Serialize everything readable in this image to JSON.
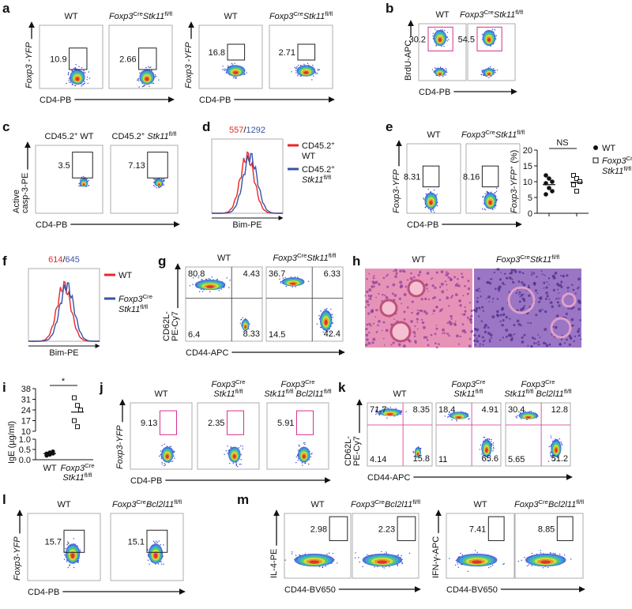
{
  "panels": [
    {
      "label": "a",
      "groups": [
        {
          "ylabel": [
            [
              "Foxp3 -YFP"
            ]
          ],
          "xlabel": "CD4-PB",
          "plots": [
            {
              "title": [
                [
                  "WT"
                ]
              ],
              "values": [
                "10.9"
              ]
            },
            {
              "title": [
                [
                  "Foxp3",
                  "Cre",
                  "Stk11",
                  "fl/fl"
                ]
              ],
              "values": [
                "2.66"
              ]
            }
          ]
        },
        {
          "ylabel": [
            [
              "Foxp3 -YFP"
            ]
          ],
          "xlabel": "CD4-PB",
          "plots": [
            {
              "title": [
                [
                  "WT"
                ]
              ],
              "values": [
                "16.8"
              ]
            },
            {
              "title": [
                [
                  "Foxp3",
                  "Cre",
                  "Stk11",
                  "fl/fl"
                ]
              ],
              "values": [
                "2.71"
              ]
            }
          ]
        }
      ]
    },
    {
      "label": "b",
      "groups": [
        {
          "ylabel": [
            [
              "BrdU-APC"
            ]
          ],
          "xlabel": "CD4-PB",
          "plots": [
            {
              "title": [
                [
                  "WT"
                ]
              ],
              "values": [
                "30.2"
              ]
            },
            {
              "title": [
                [
                  "Foxp3",
                  "Cre",
                  "Stk11",
                  "fl/fl"
                ]
              ],
              "values": [
                "54.5"
              ]
            }
          ]
        }
      ]
    },
    {
      "label": "c",
      "groups": [
        {
          "ylabel": [
            [
              "Active"
            ],
            [
              "casp-3-PE"
            ]
          ],
          "xlabel": "CD4-PB",
          "plots": [
            {
              "title": [
                [
                  "CD45.2",
                  "+",
                  " WT"
                ]
              ],
              "values": [
                "3.5"
              ]
            },
            {
              "title": [
                [
                  "CD45.2",
                  "+",
                  " Stk11",
                  "fl/fl"
                ]
              ],
              "values": [
                "7.13"
              ]
            }
          ]
        }
      ]
    },
    {
      "label": "d",
      "histogram": {
        "header": [
          "557",
          "/",
          "1292"
        ],
        "xlabel": "Bim-PE",
        "series": [
          {
            "name": [
              [
                "CD45.2",
                "+"
              ],
              [
                "WT"
              ]
            ],
            "color": "#e8262a"
          },
          {
            "name": [
              [
                "CD45.2",
                "+"
              ],
              [
                "Stk11",
                "fl/fl"
              ]
            ],
            "color": "#3953a4"
          }
        ]
      }
    },
    {
      "label": "e",
      "groups": [
        {
          "ylabel": [
            [
              "Foxp3-YFP"
            ]
          ],
          "xlabel": "CD4-PB",
          "plots": [
            {
              "title": [
                [
                  "WT"
                ]
              ],
              "values": [
                "8.31"
              ]
            },
            {
              "title": [
                [
                  "Foxp3",
                  "Cre",
                  "Stk11",
                  "fl/fl"
                ]
              ],
              "values": [
                "8.16"
              ]
            }
          ]
        }
      ],
      "chart": {
        "ylabel": [
          [
            "Foxp3-YFP",
            "+",
            " (%)"
          ]
        ],
        "ylim": [
          0,
          20
        ],
        "yticks": [
          0,
          5,
          10,
          15,
          20
        ],
        "significance": "NS",
        "series": [
          {
            "name": [
              [
                "WT"
              ]
            ],
            "values": [
              12,
              11,
              10,
              9.5,
              8,
              7,
              6
            ]
          },
          {
            "name": [
              [
                "Foxp3",
                "Cre"
              ],
              [
                "Stk11",
                "fl/fl"
              ]
            ],
            "values": [
              12,
              11,
              10,
              9,
              7
            ]
          }
        ]
      }
    },
    {
      "label": "f",
      "histogram": {
        "header": [
          "614",
          "/",
          "645"
        ],
        "xlabel": "Bim-PE",
        "series": [
          {
            "name": [
              [
                "WT"
              ]
            ],
            "color": "#e8262a"
          },
          {
            "name": [
              [
                "Foxp3",
                "Cre"
              ],
              [
                "Stk11",
                "fl/fl"
              ]
            ],
            "color": "#3953a4"
          }
        ]
      }
    },
    {
      "label": "g",
      "groups": [
        {
          "ylabel": [
            [
              "CD62L-"
            ],
            [
              "PE-Cy7"
            ]
          ],
          "xlabel": "CD44-APC",
          "plots": [
            {
              "title": [
                [
                  "WT"
                ]
              ],
              "values": [
                "80.8",
                "4.43",
                "6.4",
                "8.33"
              ]
            },
            {
              "title": [
                [
                  "Foxp3",
                  "Cre",
                  "Stk11",
                  "fl/fl"
                ]
              ],
              "values": [
                "36.7",
                "6.33",
                "14.5",
                "42.4"
              ]
            }
          ]
        }
      ]
    },
    {
      "label": "h",
      "images": [
        {
          "title": [
            [
              "WT"
            ]
          ]
        },
        {
          "title": [
            [
              "Foxp3",
              "Cre",
              "Stk11",
              "fl/fl"
            ]
          ]
        }
      ]
    },
    {
      "label": "i",
      "chart": {
        "ylabel": "IgE (µg/ml)",
        "ylim": [
          10,
          38
        ],
        "yticks": [
          10,
          17,
          24,
          31,
          38
        ],
        "ylim_lower": [
          0,
          1
        ],
        "yticks_lower": [
          {
            "value": 0,
            "label": "0.0"
          },
          {
            "value": 0.5,
            "label": "0.5"
          },
          {
            "value": 1,
            "label": "1.0"
          }
        ],
        "significance": "*",
        "series": [
          {
            "name": [
              [
                "WT"
              ]
            ],
            "values": [
              0.2,
              0.25,
              0.3,
              0.28,
              0.35,
              0.4,
              0.3
            ]
          },
          {
            "name": [
              [
                "Foxp3",
                "Cre"
              ],
              [
                "Stk11",
                "fl/fl"
              ]
            ],
            "values": [
              32,
              27,
              24,
              17,
              13
            ]
          }
        ]
      }
    },
    {
      "label": "j",
      "groups": [
        {
          "ylabel": [
            [
              "Foxp3-YFP"
            ]
          ],
          "xlabel": "CD4-PB",
          "plots": [
            {
              "title": [
                [
                  "WT"
                ]
              ],
              "values": [
                "9.13"
              ]
            },
            {
              "title": [
                [
                  "Foxp3",
                  "Cre"
                ],
                [
                  "Stk11",
                  "fl/fl"
                ]
              ],
              "values": [
                "2.35"
              ]
            },
            {
              "title": [
                [
                  "Foxp3",
                  "Cre"
                ],
                [
                  "Stk11",
                  "fl/fl",
                  " Bcl2l11",
                  "fl/fl"
                ]
              ],
              "values": [
                "5.91"
              ]
            }
          ]
        }
      ]
    },
    {
      "label": "k",
      "groups": [
        {
          "ylabel": [
            [
              "CD62L-"
            ],
            [
              "PE-Cy7"
            ]
          ],
          "xlabel": "CD44-APC",
          "plots": [
            {
              "title": [
                [
                  "WT"
                ]
              ],
              "values": [
                "71.7",
                "8.35",
                "4.14",
                "15.8"
              ]
            },
            {
              "title": [
                [
                  "Foxp3",
                  "Cre"
                ],
                [
                  "Stk11",
                  "fl/fl"
                ]
              ],
              "values": [
                "18.4",
                "4.91",
                "11",
                "65.6"
              ]
            },
            {
              "title": [
                [
                  "Foxp3",
                  "Cre"
                ],
                [
                  "Stk11",
                  "fl/fl",
                  " Bcl2l11",
                  "fl/fl"
                ]
              ],
              "values": [
                "30.4",
                "12.8",
                "5.65",
                "51.2"
              ]
            }
          ]
        }
      ]
    },
    {
      "label": "l",
      "groups": [
        {
          "ylabel": [
            [
              "Foxp3-YFP"
            ]
          ],
          "xlabel": "CD4-PB",
          "plots": [
            {
              "title": [
                [
                  "WT"
                ]
              ],
              "values": [
                "15.7"
              ]
            },
            {
              "title": [
                [
                  "Foxp3",
                  "Cre",
                  "Bcl2l11",
                  "fl/fl"
                ]
              ],
              "values": [
                "15.1"
              ]
            }
          ]
        }
      ]
    },
    {
      "label": "m",
      "groups": [
        {
          "ylabel": [
            [
              "IL-4-PE"
            ]
          ],
          "xlabel": "CD44-BV650",
          "plots": [
            {
              "title": [
                [
                  "WT"
                ]
              ],
              "values": [
                "2.98"
              ]
            },
            {
              "title": [
                [
                  "Foxp3",
                  "Cre",
                  "Bcl2l11",
                  "fl/fl"
                ]
              ],
              "values": [
                "2.23"
              ]
            }
          ]
        },
        {
          "ylabel": [
            [
              "IFN-γ-APC"
            ]
          ],
          "xlabel": "CD44-BV650",
          "plots": [
            {
              "title": [
                [
                  "WT"
                ]
              ],
              "values": [
                "7.41"
              ]
            },
            {
              "title": [
                [
                  "Foxp3",
                  "Cre",
                  "Bcl2l11",
                  "fl/fl"
                ]
              ],
              "values": [
                "8.85"
              ]
            }
          ]
        }
      ]
    }
  ]
}
